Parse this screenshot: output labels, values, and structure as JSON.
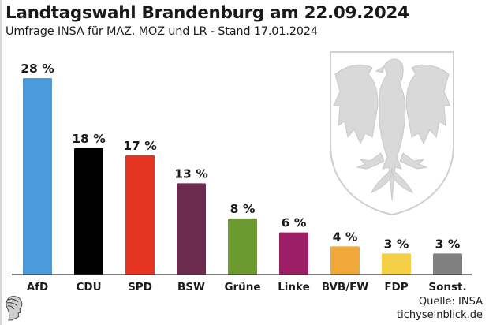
{
  "header": {
    "title": "Landtagswahl Brandenburg am 22.09.2024",
    "subtitle": "Umfrage INSA für MAZ, MOZ und LR - Stand 17.01.2024"
  },
  "footer": {
    "source": "Quelle: INSA",
    "site": "tichyseinblick.de"
  },
  "decorations": {
    "crest_icon": "brandenburg-eagle-crest",
    "logo_icon": "hermes-head-logo"
  },
  "chart_data": {
    "type": "bar",
    "title": "Landtagswahl Brandenburg am 22.09.2024",
    "subtitle": "Umfrage INSA für MAZ, MOZ und LR - Stand 17.01.2024",
    "xlabel": "",
    "ylabel": "",
    "unit": "%",
    "ylim": [
      0,
      28
    ],
    "grid": false,
    "legend": "none",
    "categories": [
      "AfD",
      "CDU",
      "SPD",
      "BSW",
      "Grüne",
      "Linke",
      "BVB/FW",
      "FDP",
      "Sonst."
    ],
    "values": [
      28,
      18,
      17,
      13,
      8,
      6,
      4,
      3,
      3
    ],
    "labels": [
      "28 %",
      "18 %",
      "17 %",
      "13 %",
      "8 %",
      "6 %",
      "4 %",
      "3 %",
      "3 %"
    ],
    "colors": [
      "#4a9cdc",
      "#000000",
      "#e63422",
      "#6d2a4f",
      "#6d9a2e",
      "#9c1f66",
      "#f0a83b",
      "#f5cf46",
      "#808080"
    ]
  }
}
